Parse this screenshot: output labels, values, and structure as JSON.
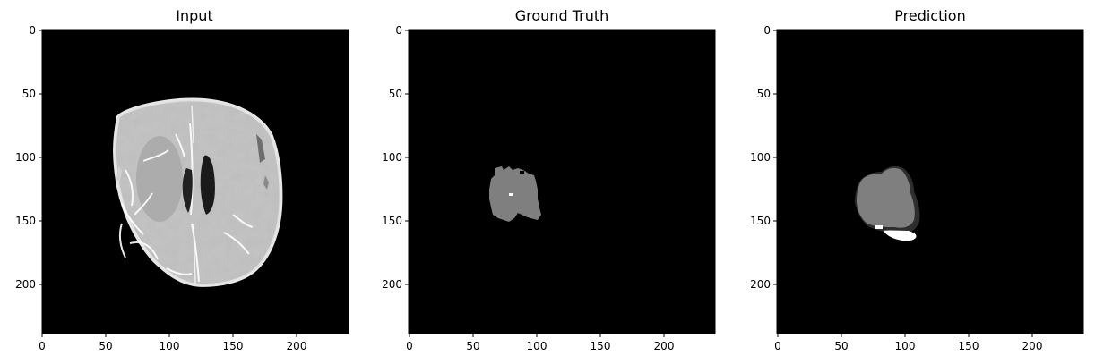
{
  "figure": {
    "panels": [
      {
        "title": "Input",
        "x_ticks": [
          "0",
          "50",
          "100",
          "150",
          "200"
        ],
        "y_ticks": [
          "0",
          "50",
          "100",
          "150",
          "200"
        ]
      },
      {
        "title": "Ground Truth",
        "x_ticks": [
          "0",
          "50",
          "100",
          "150",
          "200"
        ],
        "y_ticks": [
          "0",
          "50",
          "100",
          "150",
          "200"
        ]
      },
      {
        "title": "Prediction",
        "x_ticks": [
          "0",
          "50",
          "100",
          "150",
          "200"
        ],
        "y_ticks": [
          "0",
          "50",
          "100",
          "150",
          "200"
        ]
      }
    ]
  }
}
